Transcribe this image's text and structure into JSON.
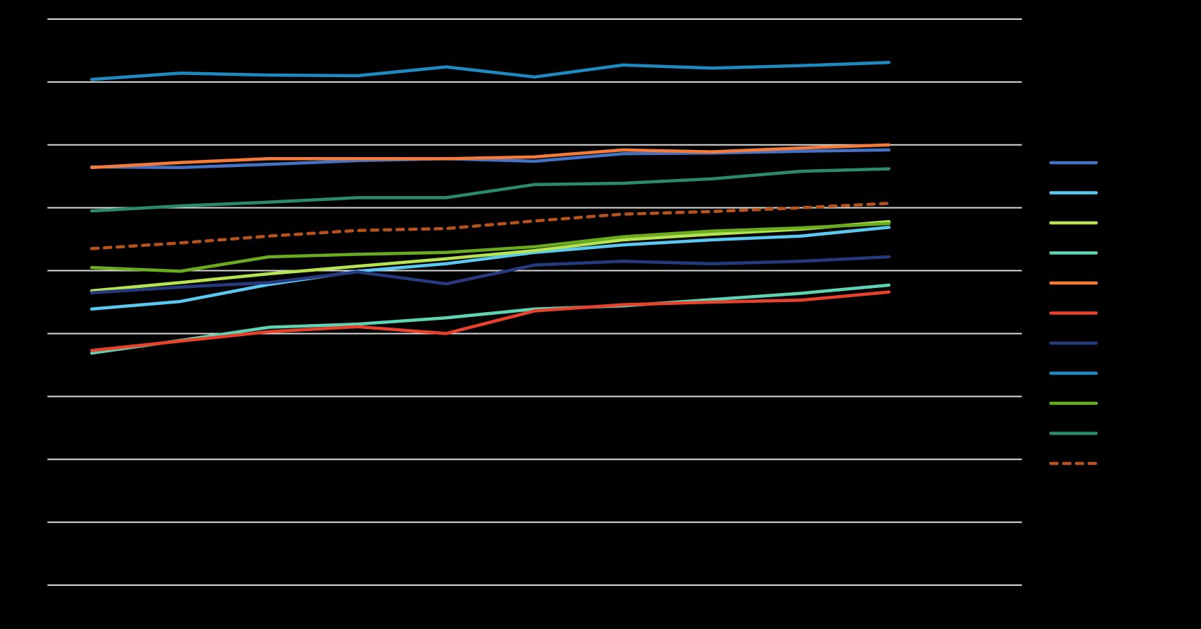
{
  "chart_data": {
    "type": "line",
    "categories": [
      null,
      null,
      null,
      null,
      null,
      null,
      null,
      null,
      null,
      null
    ],
    "ylim": [
      0,
      9
    ],
    "yticks": [
      0,
      1,
      2,
      3,
      4,
      5,
      6,
      7,
      8,
      9
    ],
    "grid": true,
    "legend": "right",
    "series": [
      {
        "color": "#4472c4",
        "values": [
          6.65,
          6.64,
          6.69,
          6.75,
          6.78,
          6.74,
          6.86,
          6.87,
          6.9,
          6.92
        ]
      },
      {
        "color": "#5bc8f0",
        "values": [
          4.39,
          4.51,
          4.78,
          4.99,
          5.11,
          5.29,
          5.41,
          5.49,
          5.55,
          5.69
        ]
      },
      {
        "color": "#b5e352",
        "values": [
          4.68,
          4.81,
          4.95,
          5.07,
          5.19,
          5.32,
          5.49,
          5.58,
          5.66,
          5.78
        ]
      },
      {
        "color": "#5fd3b3",
        "values": [
          3.69,
          3.89,
          4.1,
          4.15,
          4.25,
          4.39,
          4.44,
          4.54,
          4.64,
          4.77
        ]
      },
      {
        "color": "#f47b3a",
        "values": [
          6.64,
          6.72,
          6.78,
          6.78,
          6.78,
          6.81,
          6.92,
          6.89,
          6.95,
          7.0
        ]
      },
      {
        "color": "#e8412c",
        "values": [
          3.73,
          3.88,
          4.03,
          4.11,
          4.0,
          4.36,
          4.46,
          4.5,
          4.53,
          4.66
        ]
      },
      {
        "color": "#263a7d",
        "values": [
          4.65,
          4.74,
          4.81,
          4.98,
          4.79,
          5.09,
          5.15,
          5.11,
          5.15,
          5.22
        ]
      },
      {
        "color": "#1e8ac0",
        "values": [
          8.04,
          8.14,
          8.11,
          8.1,
          8.24,
          8.08,
          8.27,
          8.22,
          8.26,
          8.31
        ]
      },
      {
        "color": "#6aab1f",
        "values": [
          5.05,
          4.99,
          5.22,
          5.26,
          5.29,
          5.38,
          5.54,
          5.63,
          5.68,
          5.75
        ]
      },
      {
        "color": "#2b8a6e",
        "values": [
          5.95,
          6.03,
          6.09,
          6.16,
          6.16,
          6.37,
          6.39,
          6.46,
          6.58,
          6.62
        ]
      },
      {
        "color": "#b5531e",
        "dashed": true,
        "values": [
          5.35,
          5.44,
          5.55,
          5.64,
          5.67,
          5.79,
          5.9,
          5.94,
          6.0,
          6.07
        ]
      }
    ]
  }
}
